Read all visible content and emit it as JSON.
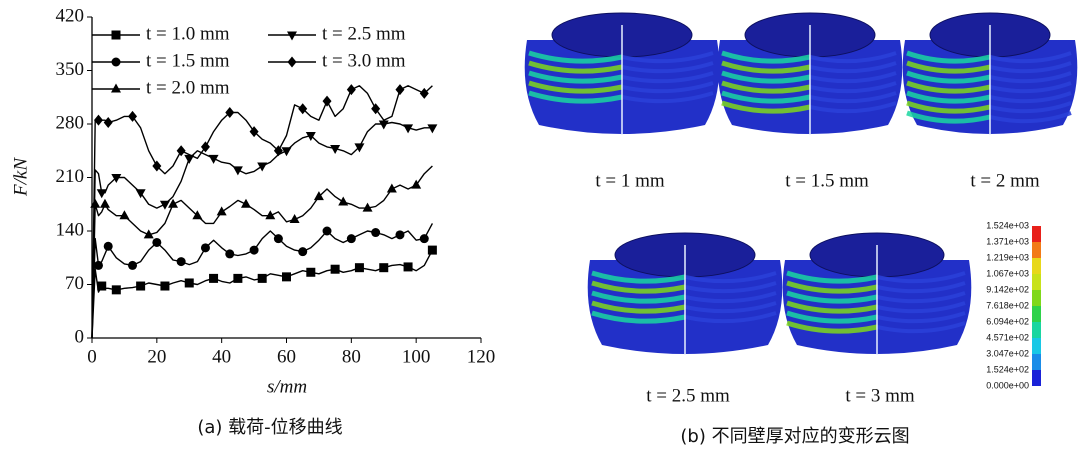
{
  "chart_data": {
    "type": "line",
    "xlabel": "s/mm",
    "ylabel": "F/kN",
    "x": [
      0,
      1,
      2,
      3,
      4,
      5,
      7.5,
      10,
      12.5,
      15,
      17.5,
      20,
      22.5,
      25,
      27.5,
      30,
      32.5,
      35,
      37.5,
      40,
      42.5,
      45,
      47.5,
      50,
      52.5,
      55,
      57.5,
      60,
      62.5,
      65,
      67.5,
      70,
      72.5,
      75,
      77.5,
      80,
      82.5,
      85,
      87.5,
      90,
      92.5,
      95,
      97.5,
      100,
      102.5,
      105
    ],
    "series": [
      {
        "name": "t = 1.0 mm",
        "color": "#000000",
        "marker": "square",
        "values": [
          0,
          90,
          60,
          68,
          65,
          65,
          63,
          65,
          66,
          68,
          72,
          70,
          68,
          72,
          75,
          72,
          70,
          75,
          78,
          74,
          72,
          78,
          80,
          76,
          78,
          84,
          82,
          80,
          84,
          88,
          86,
          84,
          88,
          90,
          86,
          88,
          92,
          90,
          88,
          92,
          95,
          96,
          93,
          88,
          95,
          115
        ]
      },
      {
        "name": "t = 1.5 mm",
        "color": "#000000",
        "marker": "circle",
        "values": [
          0,
          130,
          95,
          100,
          110,
          120,
          105,
          97,
          95,
          100,
          115,
          125,
          115,
          102,
          100,
          96,
          100,
          118,
          128,
          118,
          110,
          108,
          110,
          115,
          130,
          140,
          130,
          120,
          115,
          113,
          118,
          128,
          140,
          130,
          125,
          130,
          135,
          140,
          138,
          135,
          130,
          135,
          140,
          128,
          130,
          150
        ]
      },
      {
        "name": "t = 2.0 mm",
        "color": "#000000",
        "marker": "triangle-up",
        "values": [
          0,
          175,
          160,
          165,
          175,
          168,
          160,
          160,
          150,
          140,
          135,
          138,
          150,
          175,
          180,
          170,
          160,
          150,
          150,
          165,
          172,
          180,
          175,
          168,
          160,
          160,
          165,
          152,
          155,
          160,
          170,
          185,
          195,
          185,
          178,
          175,
          170,
          170,
          172,
          180,
          195,
          200,
          195,
          200,
          215,
          225
        ]
      },
      {
        "name": "t = 2.5 mm",
        "color": "#000000",
        "marker": "triangle-down",
        "values": [
          0,
          220,
          215,
          190,
          190,
          200,
          210,
          210,
          200,
          190,
          175,
          170,
          175,
          185,
          205,
          235,
          245,
          240,
          235,
          230,
          228,
          220,
          215,
          218,
          225,
          230,
          240,
          245,
          255,
          262,
          265,
          255,
          250,
          248,
          245,
          240,
          250,
          270,
          280,
          280,
          282,
          280,
          275,
          272,
          275,
          275
        ]
      },
      {
        "name": "t = 3.0 mm",
        "color": "#000000",
        "marker": "diamond",
        "values": [
          0,
          285,
          285,
          285,
          285,
          282,
          285,
          290,
          290,
          275,
          245,
          225,
          215,
          225,
          245,
          240,
          235,
          250,
          270,
          285,
          295,
          295,
          285,
          270,
          260,
          255,
          245,
          265,
          305,
          300,
          290,
          285,
          310,
          290,
          300,
          325,
          330,
          320,
          300,
          285,
          290,
          325,
          330,
          325,
          320,
          330
        ]
      }
    ],
    "xlim": [
      0,
      120
    ],
    "xticks": [
      0,
      20,
      40,
      60,
      80,
      100,
      120
    ],
    "ylim": [
      0,
      420
    ],
    "yticks": [
      0,
      70,
      140,
      210,
      280,
      350,
      420
    ],
    "legend": "upper-left",
    "grid": false
  },
  "panel_a": {
    "caption": "(a) 载荷-位移曲线"
  },
  "panel_b": {
    "caption": "(b) 不同壁厚对应的变形云图",
    "images": [
      "t = 1 mm",
      "t = 1.5 mm",
      "t = 2 mm",
      "t = 2.5 mm",
      "t = 3 mm"
    ],
    "colorbar": [
      "1.524e+03",
      "1.371e+03",
      "1.219e+03",
      "1.067e+03",
      "9.142e+02",
      "7.618e+02",
      "6.094e+02",
      "4.571e+02",
      "3.047e+02",
      "1.524e+02",
      "0.000e+00"
    ]
  }
}
